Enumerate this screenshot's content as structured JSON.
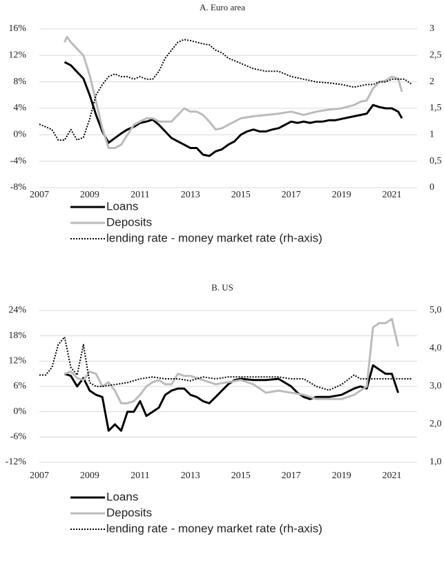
{
  "chart_data": [
    {
      "type": "line",
      "title": "A. Euro area",
      "grid": true,
      "legend": "bottom",
      "xlim": [
        2007,
        2022
      ],
      "xticks": [
        2007,
        2009,
        2011,
        2013,
        2015,
        2017,
        2019,
        2021
      ],
      "ylim": [
        -8,
        16
      ],
      "yticks": [
        {
          "value": 16,
          "label": "16%"
        },
        {
          "value": 12,
          "label": "12%"
        },
        {
          "value": 8,
          "label": "8%"
        },
        {
          "value": 4,
          "label": "4%"
        },
        {
          "value": 0,
          "label": "0%"
        },
        {
          "value": -4,
          "label": "-4%"
        },
        {
          "value": -8,
          "label": "-8%"
        }
      ],
      "y2lim": [
        0,
        3
      ],
      "y2ticks": [
        3,
        {
          "value": 2.5,
          "label": "2,5"
        },
        2,
        {
          "value": 1.5,
          "label": "1,5"
        },
        1,
        {
          "value": 0.5,
          "label": "0,5"
        },
        0
      ],
      "series": [
        {
          "name": "Loans",
          "color": "#000000",
          "line_style": "solid",
          "x": [
            2008.0,
            2008.25,
            2008.5,
            2008.75,
            2009.0,
            2009.25,
            2009.5,
            2009.75,
            2010.0,
            2010.25,
            2010.5,
            2010.75,
            2011.0,
            2011.25,
            2011.5,
            2011.75,
            2012.0,
            2012.25,
            2012.5,
            2012.75,
            2013.0,
            2013.25,
            2013.5,
            2013.75,
            2014.0,
            2014.25,
            2014.5,
            2014.75,
            2015.0,
            2015.25,
            2015.5,
            2015.75,
            2016.0,
            2016.25,
            2016.5,
            2016.75,
            2017.0,
            2017.25,
            2017.5,
            2017.75,
            2018.0,
            2018.25,
            2018.5,
            2018.75,
            2019.0,
            2019.25,
            2019.5,
            2019.75,
            2020.0,
            2020.25,
            2020.5,
            2020.75,
            2021.0,
            2021.25,
            2021.4
          ],
          "values": [
            11,
            10.5,
            9.5,
            8.5,
            6,
            3,
            0.5,
            -1.2,
            -0.5,
            0.2,
            0.8,
            1.2,
            1.8,
            2,
            2.3,
            1.5,
            0.5,
            -0.5,
            -1,
            -1.5,
            -2,
            -2,
            -3,
            -3.2,
            -2.5,
            -2.2,
            -1.5,
            -1,
            0,
            0.5,
            0.8,
            0.5,
            0.5,
            0.8,
            1,
            1.5,
            2,
            1.8,
            2,
            1.8,
            2,
            2,
            2.2,
            2.2,
            2.4,
            2.6,
            2.8,
            3,
            3.2,
            4.5,
            4.2,
            4,
            4,
            3.5,
            2.5
          ]
        },
        {
          "name": "Deposits",
          "color": "#bbbbbb",
          "line_style": "solid",
          "x": [
            2008.0,
            2008.1,
            2008.25,
            2008.5,
            2008.75,
            2009.0,
            2009.25,
            2009.5,
            2009.75,
            2010.0,
            2010.25,
            2010.5,
            2010.75,
            2011.0,
            2011.25,
            2011.5,
            2011.75,
            2012.0,
            2012.25,
            2012.5,
            2012.75,
            2013.0,
            2013.25,
            2013.5,
            2013.75,
            2014.0,
            2014.25,
            2014.5,
            2014.75,
            2015.0,
            2015.5,
            2016.0,
            2016.5,
            2017.0,
            2017.5,
            2018.0,
            2018.5,
            2019.0,
            2019.5,
            2019.75,
            2020.0,
            2020.25,
            2020.5,
            2020.75,
            2021.0,
            2021.25,
            2021.4
          ],
          "values": [
            14,
            14.8,
            14,
            13,
            12,
            9,
            5,
            1,
            -2,
            -2,
            -1.5,
            0,
            1.5,
            2,
            2.5,
            2.5,
            2,
            2,
            2,
            3,
            4,
            3.5,
            3.5,
            3,
            2,
            0.8,
            1,
            1.5,
            2,
            2.5,
            2.8,
            3,
            3.2,
            3.5,
            3,
            3.5,
            3.8,
            4,
            4.5,
            5,
            5.2,
            7,
            8,
            8.2,
            8.8,
            8.5,
            6.5
          ]
        },
        {
          "name": "lending rate - money market rate (rh-axis)",
          "color": "#000000",
          "line_style": "dotted",
          "axis": "y2",
          "x": [
            2007.0,
            2007.25,
            2007.5,
            2007.75,
            2008.0,
            2008.25,
            2008.5,
            2008.75,
            2009.0,
            2009.25,
            2009.5,
            2009.75,
            2010.0,
            2010.25,
            2010.5,
            2010.75,
            2011.0,
            2011.25,
            2011.5,
            2011.75,
            2012.0,
            2012.25,
            2012.5,
            2012.75,
            2013.0,
            2013.25,
            2013.5,
            2013.75,
            2014.0,
            2014.25,
            2014.5,
            2014.75,
            2015.0,
            2015.5,
            2016.0,
            2016.5,
            2017.0,
            2017.5,
            2018.0,
            2018.5,
            2019.0,
            2019.5,
            2020.0,
            2020.25,
            2020.5,
            2020.75,
            2021.0,
            2021.5,
            2021.8
          ],
          "values": [
            1.2,
            1.15,
            1.1,
            0.9,
            0.9,
            1.1,
            0.9,
            0.95,
            1.3,
            1.75,
            1.95,
            2.1,
            2.15,
            2.1,
            2.1,
            2.05,
            2.1,
            2.05,
            2.05,
            2.2,
            2.45,
            2.6,
            2.75,
            2.8,
            2.78,
            2.75,
            2.72,
            2.7,
            2.6,
            2.55,
            2.45,
            2.4,
            2.35,
            2.25,
            2.2,
            2.2,
            2.1,
            2.05,
            2.0,
            1.98,
            1.95,
            1.9,
            1.95,
            1.95,
            2.0,
            2.0,
            2.05,
            2.05,
            1.95
          ]
        }
      ]
    },
    {
      "type": "line",
      "title": "B. US",
      "grid": true,
      "legend": "bottom",
      "xlim": [
        2007,
        2022
      ],
      "xticks": [
        2007,
        2009,
        2011,
        2013,
        2015,
        2017,
        2019,
        2021
      ],
      "ylim": [
        -12,
        24
      ],
      "yticks": [
        {
          "value": 24,
          "label": "24%"
        },
        {
          "value": 18,
          "label": "18%"
        },
        {
          "value": 12,
          "label": "12%"
        },
        {
          "value": 6,
          "label": "6%"
        },
        {
          "value": 0,
          "label": "0%"
        },
        {
          "value": -6,
          "label": "-6%"
        },
        {
          "value": -12,
          "label": "-12%"
        }
      ],
      "y2lim": [
        1,
        5
      ],
      "y2ticks": [
        {
          "value": 5,
          "label": "5,0"
        },
        {
          "value": 4,
          "label": "4,0"
        },
        {
          "value": 3,
          "label": "3,0"
        },
        {
          "value": 2,
          "label": "2,0"
        },
        {
          "value": 1,
          "label": "1,0"
        }
      ],
      "series": [
        {
          "name": "Loans",
          "color": "#000000",
          "line_style": "solid",
          "x": [
            2008.0,
            2008.25,
            2008.5,
            2008.75,
            2009.0,
            2009.25,
            2009.5,
            2009.75,
            2010.0,
            2010.25,
            2010.5,
            2010.75,
            2011.0,
            2011.25,
            2011.5,
            2011.75,
            2012.0,
            2012.25,
            2012.5,
            2012.75,
            2013.0,
            2013.25,
            2013.5,
            2013.75,
            2014.0,
            2014.25,
            2014.5,
            2014.75,
            2015.0,
            2015.5,
            2016.0,
            2016.5,
            2017.0,
            2017.25,
            2017.5,
            2017.75,
            2018.0,
            2018.5,
            2019.0,
            2019.5,
            2019.75,
            2020.0,
            2020.25,
            2020.5,
            2020.75,
            2021.0,
            2021.25
          ],
          "values": [
            9,
            8.5,
            6,
            8,
            5,
            4,
            3.5,
            -4.5,
            -3,
            -4.5,
            0,
            0,
            2.5,
            -1,
            0,
            1,
            4,
            5,
            5.5,
            5.5,
            4,
            3.5,
            2.5,
            2,
            3.5,
            5,
            6.5,
            7.5,
            7.8,
            7.5,
            7.5,
            7.8,
            6,
            4.5,
            3.5,
            3,
            3.5,
            3.5,
            4,
            5.5,
            6,
            5.5,
            11,
            10,
            9,
            9,
            4.5
          ]
        },
        {
          "name": "Deposits",
          "color": "#bbbbbb",
          "line_style": "solid",
          "x": [
            2008.0,
            2008.25,
            2008.5,
            2008.75,
            2009.0,
            2009.25,
            2009.5,
            2009.75,
            2010.0,
            2010.25,
            2010.5,
            2010.75,
            2011.0,
            2011.25,
            2011.5,
            2011.75,
            2012.0,
            2012.25,
            2012.5,
            2012.75,
            2013.0,
            2013.5,
            2014.0,
            2014.5,
            2015.0,
            2015.5,
            2016.0,
            2016.5,
            2017.0,
            2017.5,
            2018.0,
            2018.5,
            2019.0,
            2019.5,
            2020.0,
            2020.25,
            2020.5,
            2020.75,
            2021.0,
            2021.25
          ],
          "values": [
            9,
            9.5,
            8,
            7.5,
            9.5,
            9,
            6,
            7,
            5,
            2,
            2,
            2.5,
            4,
            6,
            7,
            7.5,
            6.5,
            6.5,
            9,
            8.5,
            8.5,
            7.5,
            6.5,
            7,
            7.5,
            6.5,
            4.5,
            5,
            4.5,
            4,
            3,
            3,
            3,
            4,
            6,
            20,
            21,
            21,
            22,
            15.5
          ]
        },
        {
          "name": "lending rate - money market rate (rh-axis)",
          "color": "#000000",
          "line_style": "dotted",
          "axis": "y2",
          "x": [
            2007.0,
            2007.25,
            2007.5,
            2007.75,
            2008.0,
            2008.25,
            2008.5,
            2008.75,
            2009.0,
            2009.25,
            2009.5,
            2010.0,
            2010.5,
            2011.0,
            2011.5,
            2012.0,
            2012.5,
            2013.0,
            2013.5,
            2014.0,
            2014.5,
            2015.0,
            2015.5,
            2016.0,
            2016.5,
            2017.0,
            2017.5,
            2018.0,
            2018.5,
            2019.0,
            2019.5,
            2019.75,
            2020.0,
            2020.5,
            2021.0,
            2021.5,
            2021.8
          ],
          "values": [
            3.3,
            3.3,
            3.5,
            4.1,
            4.3,
            3.5,
            3.3,
            4.1,
            3.1,
            3.0,
            3.0,
            3.05,
            3.1,
            3.2,
            3.25,
            3.2,
            3.2,
            3.15,
            3.25,
            3.2,
            3.25,
            3.25,
            3.25,
            3.25,
            3.25,
            3.2,
            3.2,
            3.0,
            2.9,
            3.05,
            3.3,
            3.2,
            3.2,
            3.2,
            3.2,
            3.2,
            3.2
          ]
        }
      ]
    }
  ]
}
